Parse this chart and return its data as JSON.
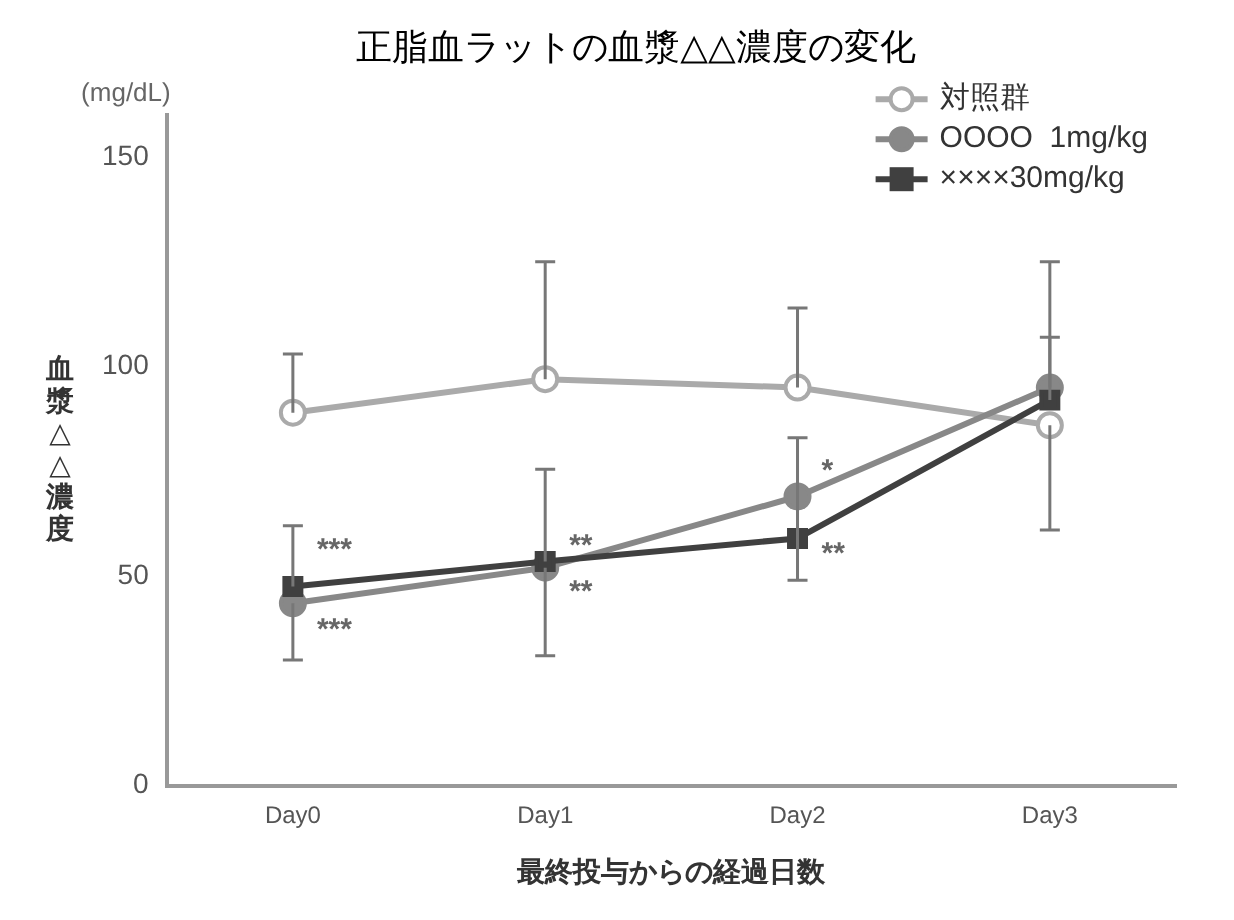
{
  "chart_data": {
    "type": "line",
    "title": "正脂血ラットの血漿△△濃度の変化",
    "xlabel": "最終投与からの経過日数",
    "ylabel": "血漿△△濃度",
    "categories": [
      "Day0",
      "Day1",
      "Day2",
      "Day3"
    ],
    "series": [
      {
        "name": "対照群",
        "color": "#aaaaaa",
        "marker": "circle",
        "values": [
          89,
          97,
          95,
          86
        ],
        "errors": [
          [
            89,
            103
          ],
          [
            97,
            125
          ],
          [
            95,
            114
          ],
          [
            61,
            86
          ]
        ]
      },
      {
        "name": "OOOO  1mg/kg",
        "color": "#888888",
        "marker": "circle",
        "values": [
          43.5,
          52,
          69,
          95
        ],
        "errors": [
          [
            30,
            43.5
          ],
          [
            31,
            52
          ],
          null,
          [
            95,
            107
          ]
        ]
      },
      {
        "name": "××××30mg/kg",
        "color": "#404040",
        "marker": "square",
        "values": [
          47.5,
          53.5,
          59,
          92
        ],
        "errors": [
          [
            47.5,
            62
          ],
          [
            53.5,
            75.5
          ],
          [
            49,
            83
          ],
          [
            92,
            125
          ]
        ]
      }
    ],
    "ylim": [
      0,
      160
    ],
    "yticks": [
      0,
      50,
      100,
      150
    ],
    "grid": false,
    "legend": "top right",
    "annotations": [
      "(mg/dL)",
      {
        "text": "***",
        "x": "Day0",
        "y": 56
      },
      {
        "text": "***",
        "x": "Day0",
        "y": 37
      },
      {
        "text": "**",
        "x": "Day1",
        "y": 46
      },
      {
        "text": "**",
        "x": "Day1",
        "y": 57
      },
      {
        "text": "*",
        "x": "Day2",
        "y": 75
      },
      {
        "text": "**",
        "x": "Day2",
        "y": 55
      }
    ]
  }
}
